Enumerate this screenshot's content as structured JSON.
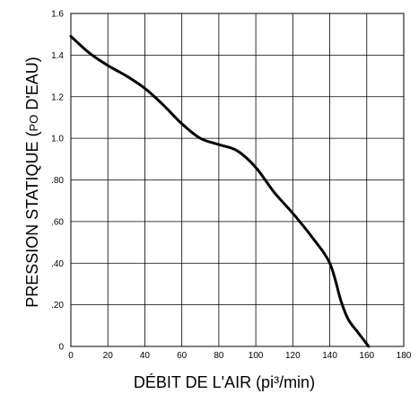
{
  "chart_data": {
    "type": "line",
    "xlabel": "DÉBIT DE L'AIR (pi³/min)",
    "ylabel_prefix": "PRESSION STATIQUE (",
    "ylabel_unit_small": "PO",
    "ylabel_suffix": " D'EAU)",
    "xlim": [
      0,
      180
    ],
    "ylim": [
      0,
      1.6
    ],
    "grid": true,
    "x_ticks": [
      {
        "value": 0,
        "label": "0"
      },
      {
        "value": 20,
        "label": "20"
      },
      {
        "value": 40,
        "label": "40"
      },
      {
        "value": 60,
        "label": "60"
      },
      {
        "value": 80,
        "label": "80"
      },
      {
        "value": 100,
        "label": "100"
      },
      {
        "value": 120,
        "label": "120"
      },
      {
        "value": 140,
        "label": "140"
      },
      {
        "value": 160,
        "label": "160"
      },
      {
        "value": 180,
        "label": "180"
      }
    ],
    "y_ticks": [
      {
        "value": 0,
        "label": "0"
      },
      {
        "value": 0.2,
        "label": ".20"
      },
      {
        "value": 0.4,
        "label": ".40"
      },
      {
        "value": 0.6,
        "label": ".60"
      },
      {
        "value": 0.8,
        "label": ".80"
      },
      {
        "value": 1.0,
        "label": "1.0"
      },
      {
        "value": 1.2,
        "label": "1.2"
      },
      {
        "value": 1.4,
        "label": "1.4"
      },
      {
        "value": 1.6,
        "label": "1.6"
      }
    ],
    "series": [
      {
        "x": [
          0,
          10,
          20,
          30,
          40,
          50,
          60,
          70,
          80,
          90,
          100,
          110,
          120,
          130,
          140,
          146,
          150,
          155,
          161
        ],
        "y": [
          1.49,
          1.41,
          1.35,
          1.3,
          1.24,
          1.16,
          1.07,
          1.0,
          0.97,
          0.94,
          0.86,
          0.74,
          0.64,
          0.53,
          0.4,
          0.22,
          0.13,
          0.07,
          0.0
        ],
        "color": "#000000"
      }
    ]
  }
}
